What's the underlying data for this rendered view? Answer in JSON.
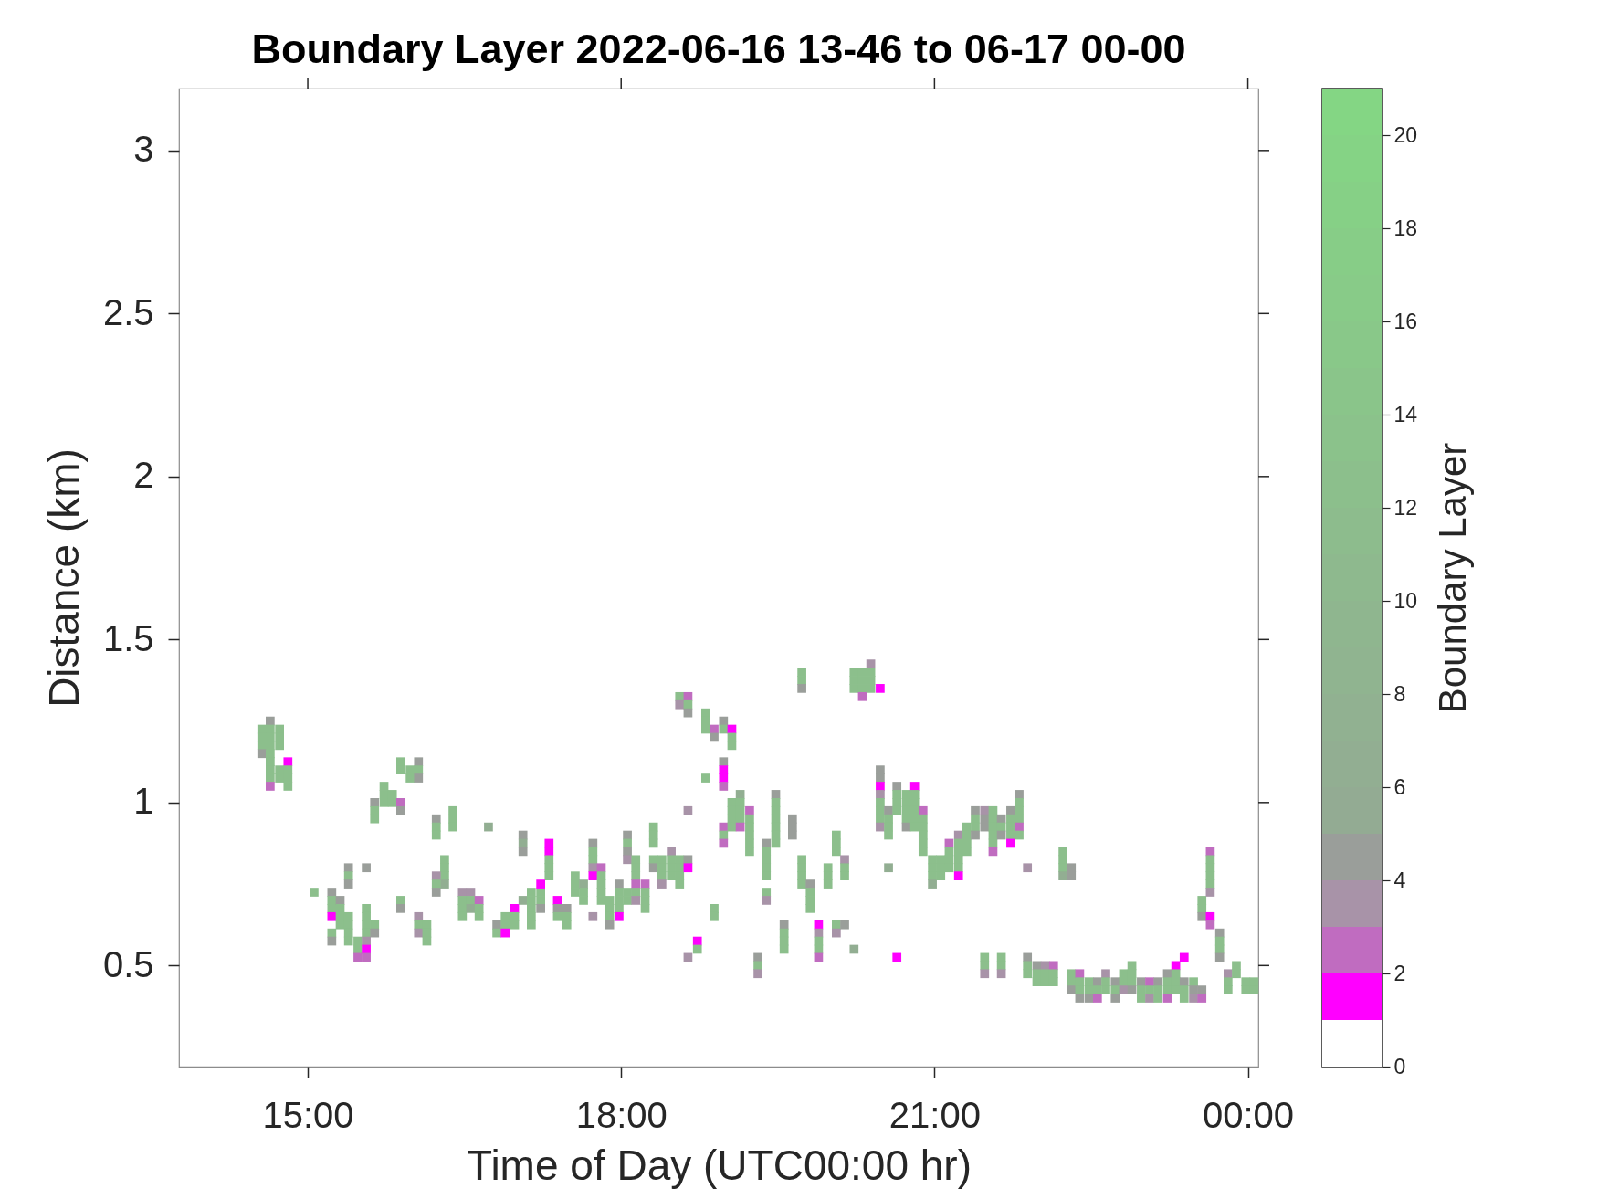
{
  "chart_data": {
    "type": "scatter",
    "title": "Boundary Layer 2022-06-16 13-46 to 06-17 00-00",
    "xlabel": "Time of Day (UTC00:00 hr)",
    "ylabel": "Distance (km)",
    "clabel": "Boundary Layer",
    "marker": "square",
    "xlim": [
      13.767,
      24.1
    ],
    "ylim": [
      0.19,
      3.19
    ],
    "xticks": [
      {
        "value": 15,
        "label": "15:00"
      },
      {
        "value": 18,
        "label": "18:00"
      },
      {
        "value": 21,
        "label": "21:00"
      },
      {
        "value": 24,
        "label": "00:00"
      }
    ],
    "yticks": [
      0.5,
      1,
      1.5,
      2,
      2.5,
      3
    ],
    "clim": [
      0,
      21
    ],
    "cticks": [
      0,
      2,
      4,
      6,
      8,
      10,
      12,
      14,
      16,
      18,
      20
    ],
    "x": [
      14.64,
      14.56,
      14.64,
      14.73,
      14.56,
      14.64,
      14.73,
      14.56,
      14.64,
      14.73,
      14.56,
      14.64,
      14.64,
      14.81,
      14.64,
      14.73,
      14.81,
      14.64,
      14.73,
      14.81,
      14.64,
      14.81,
      15.89,
      15.89,
      15.98,
      15.98,
      16.06,
      16.06,
      16.06,
      15.64,
      15.64,
      15.64,
      15.73,
      15.73,
      15.73,
      15.81,
      15.81,
      15.89,
      15.89,
      16.23,
      16.23,
      16.23,
      16.39,
      16.39,
      16.39,
      16.73,
      17.06,
      17.06,
      17.06,
      17.31,
      17.31,
      17.31,
      17.31,
      17.31,
      17.73,
      17.73,
      17.73,
      17.73,
      17.81,
      17.73,
      17.81,
      17.81,
      17.81,
      17.81,
      17.56,
      17.56,
      17.56,
      17.64,
      17.64,
      17.64,
      17.73,
      15.06,
      15.23,
      15.23,
      15.23,
      15.23,
      15.23,
      15.23,
      15.31,
      15.31,
      15.31,
      15.31,
      15.39,
      15.39,
      15.39,
      15.39,
      15.48,
      15.48,
      15.48,
      15.56,
      15.56,
      15.56,
      15.56,
      15.56,
      15.56,
      15.56,
      15.64,
      15.64,
      15.39,
      15.39,
      15.39,
      15.56,
      15.89,
      15.89,
      16.06,
      16.06,
      16.06,
      16.14,
      16.14,
      16.14,
      16.31,
      16.31,
      16.31,
      16.31,
      16.23,
      16.23,
      16.23,
      16.48,
      16.56,
      16.48,
      16.48,
      16.48,
      16.56,
      16.56,
      16.64,
      16.64,
      16.64,
      16.81,
      16.81,
      16.89,
      16.89,
      16.89,
      16.98,
      16.98,
      16.98,
      17.06,
      17.14,
      17.14,
      17.14,
      17.14,
      17.14,
      17.23,
      17.23,
      17.23,
      17.23,
      17.39,
      17.39,
      17.39,
      17.48,
      17.48,
      17.48,
      17.89,
      17.89,
      17.89,
      17.89,
      17.98,
      17.98,
      17.98,
      17.98,
      17.98,
      18.06,
      18.06,
      18.06,
      18.06,
      18.06,
      18.06,
      18.14,
      18.14,
      18.14,
      18.14,
      18.14,
      18.14,
      18.23,
      18.23,
      18.23,
      18.23,
      18.31,
      18.31,
      18.31,
      18.31,
      18.31,
      18.39,
      18.39,
      18.39,
      18.39,
      18.48,
      18.48,
      18.48,
      18.48,
      18.56,
      18.56,
      18.56,
      18.56,
      18.64,
      18.64,
      18.56,
      18.56,
      18.64,
      18.64,
      18.64,
      18.81,
      18.81,
      18.81,
      18.89,
      18.89,
      18.98,
      18.98,
      19.06,
      19.06,
      19.06,
      18.81,
      18.98,
      18.98,
      18.98,
      18.98,
      18.98,
      18.98,
      18.98,
      19.06,
      19.06,
      19.06,
      19.06,
      19.14,
      19.14,
      19.14,
      19.14,
      19.14,
      19.23,
      19.23,
      19.23,
      19.23,
      19.23,
      19.23,
      19.48,
      19.48,
      19.48,
      19.48,
      19.48,
      19.48,
      19.48,
      19.39,
      19.39,
      19.39,
      19.39,
      19.39,
      19.39,
      19.39,
      19.64,
      19.64,
      19.64,
      19.73,
      19.73,
      19.73,
      19.73,
      19.81,
      19.81,
      19.81,
      19.81,
      19.98,
      19.98,
      19.98,
      20.06,
      20.06,
      20.06,
      20.14,
      20.14,
      20.14,
      18.89,
      18.89,
      18.64,
      18.73,
      18.73,
      18.64,
      19.31,
      19.31,
      19.31,
      19.56,
      19.56,
      19.56,
      19.56,
      19.89,
      19.89,
      19.89,
      19.89,
      19.89,
      20.06,
      20.06,
      20.14,
      20.23,
      20.64,
      20.48,
      20.48,
      20.48,
      20.48,
      20.48,
      20.48,
      20.48,
      20.48,
      20.56,
      20.56,
      20.56,
      20.56,
      20.64,
      20.64,
      20.64,
      20.64,
      20.73,
      20.73,
      20.73,
      20.73,
      20.73,
      20.81,
      20.81,
      20.81,
      20.81,
      20.81,
      20.81,
      20.89,
      20.89,
      20.89,
      20.89,
      20.89,
      20.89,
      20.98,
      20.98,
      20.98,
      20.98,
      21.06,
      21.06,
      21.06,
      21.14,
      20.56,
      19.73,
      19.73,
      19.73,
      20.39,
      20.23,
      20.31,
      20.39,
      20.23,
      20.31,
      20.39,
      20.23,
      20.31,
      20.39,
      20.48,
      20.31,
      21.14,
      21.14,
      21.14,
      21.23,
      21.23,
      21.23,
      21.23,
      21.23,
      21.23,
      21.31,
      21.31,
      21.31,
      21.31,
      21.39,
      21.39,
      21.39,
      21.39,
      21.48,
      21.48,
      21.48,
      21.56,
      21.56,
      21.56,
      21.56,
      21.56,
      21.56,
      21.64,
      21.64,
      21.64,
      21.73,
      21.73,
      21.73,
      21.73,
      21.73,
      21.81,
      21.81,
      21.81,
      21.81,
      21.81,
      21.81,
      21.89,
      22.23,
      22.23,
      22.23,
      22.23,
      22.31,
      22.31,
      23.56,
      23.56,
      23.56,
      23.64,
      23.64,
      23.64,
      23.64,
      23.64,
      23.64,
      23.64,
      23.64,
      23.73,
      23.73,
      23.73,
      23.73,
      21.48,
      21.48,
      21.48,
      21.64,
      21.64,
      21.64,
      21.89,
      21.89,
      21.89,
      21.98,
      21.98,
      21.98,
      22.06,
      22.06,
      22.06,
      22.14,
      22.14,
      22.14,
      22.31,
      22.31,
      22.31,
      22.39,
      22.39,
      22.39,
      22.39,
      22.48,
      22.48,
      22.48,
      22.56,
      22.56,
      22.56,
      22.64,
      22.64,
      22.64,
      22.73,
      22.73,
      22.73,
      22.81,
      22.81,
      22.81,
      22.89,
      22.89,
      22.89,
      22.89,
      22.98,
      22.98,
      22.98,
      23.06,
      23.06,
      23.06,
      23.14,
      23.14,
      23.14,
      23.23,
      23.23,
      23.23,
      23.23,
      23.31,
      23.31,
      23.31,
      23.31,
      23.39,
      23.39,
      23.39,
      23.39,
      23.48,
      23.48,
      23.48,
      23.56,
      23.56,
      23.81,
      23.81,
      23.81,
      23.89,
      23.89,
      23.98,
      23.98,
      24.06,
      24.06
    ],
    "values": [
      1.25,
      1.225,
      1.225,
      1.225,
      1.2,
      1.2,
      1.2,
      1.175,
      1.175,
      1.175,
      1.15,
      1.15,
      1.125,
      1.125,
      1.1,
      1.1,
      1.1,
      1.075,
      1.075,
      1.075,
      1.05,
      1.05,
      1.125,
      1.1,
      1.1,
      1.075,
      1.125,
      1.1,
      1.075,
      1.0,
      0.975,
      0.95,
      1.05,
      1.025,
      1.0,
      1.025,
      1.0,
      1.0,
      0.975,
      0.95,
      0.925,
      0.9,
      0.975,
      0.95,
      0.925,
      0.925,
      0.9,
      0.875,
      0.85,
      0.875,
      0.85,
      0.825,
      0.8,
      0.775,
      0.875,
      0.85,
      0.825,
      0.8,
      0.8,
      0.775,
      0.775,
      0.75,
      0.725,
      0.7,
      0.775,
      0.75,
      0.725,
      0.75,
      0.725,
      0.7,
      0.65,
      0.725,
      0.725,
      0.7,
      0.675,
      0.65,
      0.6,
      0.575,
      0.7,
      0.675,
      0.65,
      0.625,
      0.65,
      0.625,
      0.6,
      0.575,
      0.575,
      0.55,
      0.525,
      0.675,
      0.65,
      0.625,
      0.6,
      0.575,
      0.55,
      0.525,
      0.625,
      0.6,
      0.8,
      0.775,
      0.75,
      0.8,
      0.7,
      0.675,
      0.65,
      0.625,
      0.6,
      0.625,
      0.6,
      0.575,
      0.825,
      0.8,
      0.775,
      0.75,
      0.775,
      0.75,
      0.725,
      0.725,
      0.725,
      0.7,
      0.675,
      0.65,
      0.7,
      0.675,
      0.7,
      0.675,
      0.65,
      0.625,
      0.6,
      0.65,
      0.625,
      0.6,
      0.675,
      0.65,
      0.625,
      0.7,
      0.725,
      0.7,
      0.675,
      0.65,
      0.625,
      0.725,
      0.7,
      0.675,
      0.75,
      0.7,
      0.675,
      0.65,
      0.675,
      0.65,
      0.625,
      0.7,
      0.675,
      0.65,
      0.625,
      0.75,
      0.725,
      0.7,
      0.675,
      0.65,
      0.9,
      0.875,
      0.85,
      0.825,
      0.725,
      0.7,
      0.825,
      0.8,
      0.775,
      0.75,
      0.725,
      0.7,
      0.75,
      0.725,
      0.7,
      0.675,
      0.925,
      0.9,
      0.875,
      0.825,
      0.8,
      0.825,
      0.8,
      0.775,
      0.75,
      0.85,
      0.825,
      0.8,
      0.775,
      0.825,
      0.8,
      0.775,
      0.75,
      0.825,
      0.8,
      1.325,
      1.3,
      1.325,
      1.3,
      1.275,
      1.275,
      1.25,
      1.225,
      1.225,
      1.2,
      1.25,
      1.225,
      1.225,
      1.2,
      1.175,
      1.075,
      1.125,
      1.1,
      1.075,
      1.05,
      0.925,
      0.9,
      0.875,
      1.0,
      0.975,
      0.95,
      0.925,
      1.025,
      1.0,
      0.975,
      0.95,
      0.925,
      0.975,
      0.95,
      0.925,
      0.9,
      0.875,
      0.85,
      1.025,
      1.0,
      0.975,
      0.95,
      0.925,
      0.9,
      0.875,
      0.875,
      0.85,
      0.825,
      0.8,
      0.775,
      0.725,
      0.7,
      0.95,
      0.925,
      0.9,
      0.825,
      0.8,
      0.775,
      0.75,
      0.75,
      0.725,
      0.7,
      0.675,
      0.8,
      0.775,
      0.75,
      0.9,
      0.875,
      0.85,
      0.825,
      0.8,
      0.775,
      0.675,
      0.65,
      0.975,
      0.575,
      0.55,
      0.525,
      0.525,
      0.5,
      0.475,
      0.625,
      0.6,
      0.575,
      0.55,
      0.625,
      0.6,
      0.575,
      0.55,
      0.525,
      0.625,
      0.6,
      0.625,
      0.55,
      0.525,
      1.1,
      1.075,
      1.05,
      1.025,
      1.0,
      0.975,
      0.95,
      0.925,
      0.975,
      0.95,
      0.925,
      0.9,
      1.05,
      1.025,
      1.0,
      0.975,
      1.025,
      1.0,
      0.975,
      0.95,
      0.925,
      1.05,
      1.025,
      1.0,
      0.975,
      0.95,
      0.925,
      0.975,
      0.95,
      0.925,
      0.9,
      0.875,
      0.85,
      0.825,
      0.8,
      0.775,
      0.75,
      0.825,
      0.8,
      0.775,
      0.875,
      0.8,
      1.4,
      1.375,
      1.35,
      1.425,
      1.4,
      1.4,
      1.4,
      1.375,
      1.375,
      1.375,
      1.35,
      1.35,
      1.35,
      1.35,
      1.325,
      0.85,
      0.825,
      0.8,
      0.9,
      0.875,
      0.85,
      0.825,
      0.8,
      0.775,
      0.925,
      0.9,
      0.875,
      0.85,
      0.975,
      0.95,
      0.925,
      0.9,
      0.975,
      0.95,
      0.925,
      0.975,
      0.95,
      0.925,
      0.9,
      0.875,
      0.85,
      0.95,
      0.925,
      0.9,
      0.975,
      0.95,
      0.925,
      0.9,
      0.875,
      1.025,
      1.0,
      0.975,
      0.95,
      0.925,
      0.9,
      0.8,
      0.85,
      0.825,
      0.8,
      0.775,
      0.8,
      0.775,
      0.7,
      0.675,
      0.65,
      0.85,
      0.825,
      0.8,
      0.775,
      0.75,
      0.725,
      0.65,
      0.625,
      0.6,
      0.575,
      0.55,
      0.525,
      0.525,
      0.5,
      0.475,
      0.525,
      0.5,
      0.475,
      0.525,
      0.5,
      0.475,
      0.5,
      0.475,
      0.45,
      0.5,
      0.475,
      0.45,
      0.5,
      0.475,
      0.45,
      0.475,
      0.45,
      0.425,
      0.475,
      0.45,
      0.425,
      0.4,
      0.45,
      0.425,
      0.4,
      0.45,
      0.425,
      0.4,
      0.475,
      0.45,
      0.425,
      0.45,
      0.425,
      0.4,
      0.475,
      0.45,
      0.425,
      0.5,
      0.475,
      0.45,
      0.425,
      0.45,
      0.425,
      0.4,
      0.45,
      0.425,
      0.4,
      0.45,
      0.425,
      0.4,
      0.475,
      0.45,
      0.425,
      0.4,
      0.5,
      0.475,
      0.45,
      0.425,
      0.525,
      0.45,
      0.425,
      0.4,
      0.45,
      0.425,
      0.4,
      0.425,
      0.4,
      0.475,
      0.45,
      0.425,
      0.5,
      0.475,
      0.45,
      0.425,
      0.45,
      0.425
    ],
    "cvalues": [
      4,
      12,
      12,
      12,
      12,
      12,
      12,
      12,
      12,
      12,
      4,
      12,
      12,
      1,
      12,
      12,
      12,
      12,
      12,
      12,
      2,
      12,
      12,
      12,
      12,
      12,
      4,
      12,
      4,
      4,
      12,
      12,
      12,
      12,
      12,
      12,
      12,
      2,
      4,
      4,
      12,
      12,
      12,
      12,
      12,
      6,
      4,
      6,
      4,
      1,
      1,
      12,
      12,
      12,
      4,
      12,
      12,
      3,
      2,
      1,
      12,
      12,
      12,
      12,
      12,
      12,
      12,
      6,
      12,
      12,
      3,
      12,
      4,
      12,
      12,
      1,
      12,
      4,
      4,
      12,
      12,
      12,
      12,
      12,
      12,
      12,
      12,
      12,
      2,
      12,
      12,
      12,
      12,
      3,
      1,
      2,
      12,
      4,
      4,
      12,
      4,
      4,
      12,
      4,
      3,
      12,
      3,
      12,
      12,
      12,
      12,
      12,
      12,
      6,
      3,
      12,
      4,
      3,
      3,
      12,
      12,
      12,
      12,
      6,
      2,
      12,
      12,
      4,
      12,
      12,
      12,
      1,
      1,
      12,
      12,
      6,
      12,
      12,
      12,
      12,
      12,
      12,
      12,
      4,
      1,
      1,
      4,
      12,
      4,
      12,
      12,
      12,
      12,
      12,
      4,
      4,
      12,
      12,
      12,
      1,
      4,
      12,
      4,
      3,
      12,
      12,
      12,
      12,
      12,
      2,
      12,
      3,
      2,
      12,
      12,
      12,
      12,
      12,
      12,
      12,
      4,
      12,
      12,
      12,
      3,
      3,
      12,
      12,
      12,
      12,
      12,
      12,
      12,
      4,
      1,
      12,
      3,
      2,
      12,
      4,
      12,
      12,
      12,
      2,
      4,
      4,
      12,
      1,
      12,
      12,
      12,
      4,
      1,
      1,
      2,
      2,
      12,
      2,
      12,
      12,
      12,
      12,
      6,
      12,
      12,
      12,
      2,
      2,
      12,
      12,
      12,
      12,
      12,
      4,
      12,
      12,
      12,
      12,
      12,
      12,
      4,
      12,
      12,
      12,
      12,
      12,
      3,
      4,
      4,
      4,
      12,
      12,
      12,
      12,
      4,
      12,
      12,
      12,
      12,
      12,
      12,
      12,
      12,
      12,
      3,
      12,
      12,
      12,
      12,
      3,
      1,
      12,
      3,
      4,
      12,
      3,
      4,
      12,
      12,
      12,
      1,
      3,
      12,
      12,
      2,
      12,
      3,
      4,
      6,
      1,
      4,
      4,
      1,
      3,
      12,
      12,
      12,
      3,
      4,
      12,
      12,
      12,
      4,
      12,
      12,
      12,
      12,
      12,
      12,
      12,
      4,
      1,
      12,
      12,
      12,
      12,
      12,
      2,
      12,
      12,
      12,
      12,
      12,
      12,
      12,
      12,
      6,
      12,
      12,
      12,
      2,
      6,
      12,
      12,
      4,
      3,
      12,
      12,
      12,
      12,
      12,
      12,
      12,
      12,
      12,
      1,
      2,
      12,
      12,
      12,
      3,
      12,
      12,
      12,
      12,
      1,
      12,
      12,
      12,
      12,
      4,
      12,
      12,
      4,
      3,
      4,
      4,
      12,
      12,
      12,
      12,
      12,
      2,
      4,
      12,
      4,
      4,
      12,
      12,
      12,
      1,
      4,
      12,
      12,
      12,
      2,
      12,
      3,
      12,
      12,
      12,
      6,
      4,
      4,
      12,
      12,
      4,
      2,
      12,
      12,
      12,
      12,
      3,
      1,
      2,
      4,
      12,
      12,
      4,
      12,
      12,
      3,
      12,
      12,
      3,
      4,
      12,
      12,
      4,
      12,
      12,
      3,
      12,
      12,
      2,
      12,
      12,
      12,
      12,
      4,
      2,
      12,
      12,
      4,
      12,
      12,
      4,
      4,
      12,
      2,
      3,
      12,
      12,
      4,
      12,
      4,
      12,
      12,
      3,
      12,
      12,
      12,
      4,
      4,
      12,
      12,
      2,
      12,
      3,
      4,
      12,
      12,
      4,
      12,
      12,
      2,
      1,
      12,
      12,
      12,
      1,
      4,
      12,
      12,
      12,
      4,
      3,
      4,
      2,
      3,
      12,
      12,
      12,
      12,
      12,
      12,
      12,
      12
    ]
  }
}
